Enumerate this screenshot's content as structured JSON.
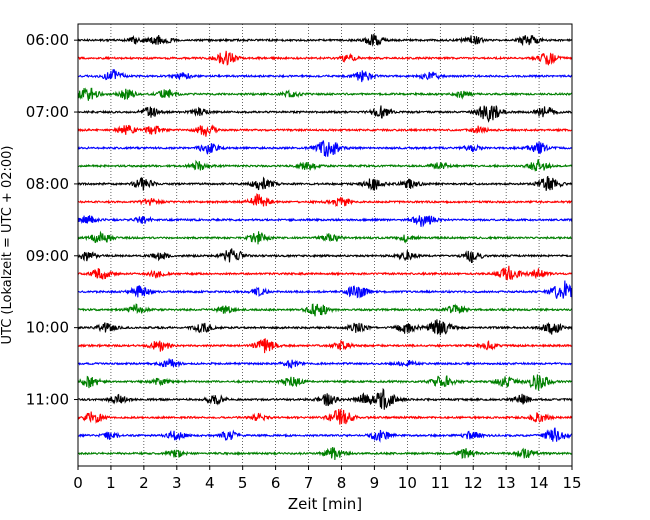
{
  "chart_data": {
    "type": "line",
    "title": "",
    "xlabel": "Zeit  [min]",
    "ylabel": "UTC (Lokalzeit = UTC + 02:00)",
    "xlim": [
      0,
      15
    ],
    "x_ticks": [
      0,
      1,
      2,
      3,
      4,
      5,
      6,
      7,
      8,
      9,
      10,
      11,
      12,
      13,
      14,
      15
    ],
    "x_tick_labels": [
      "0",
      "1",
      "2",
      "3",
      "4",
      "5",
      "6",
      "7",
      "8",
      "9",
      "10",
      "11",
      "12",
      "13",
      "14",
      "15"
    ],
    "vertical_grid": true,
    "grid_style": "dotted",
    "y_tick_labels": [
      "06:00",
      "07:00",
      "08:00",
      "09:00",
      "10:00",
      "11:00"
    ],
    "trace_colors": [
      "#000000",
      "#ff0000",
      "#0000ff",
      "#008000"
    ],
    "traces": [
      {
        "start": "06:00",
        "color": "#000000",
        "events": [
          [
            2.5,
            5
          ],
          [
            9.0,
            5
          ],
          [
            12.0,
            4
          ],
          [
            13.7,
            5
          ],
          [
            1.8,
            3
          ]
        ]
      },
      {
        "start": "06:15",
        "color": "#ff0000",
        "events": [
          [
            4.5,
            6
          ],
          [
            14.3,
            5
          ],
          [
            8.2,
            3
          ]
        ]
      },
      {
        "start": "06:30",
        "color": "#0000ff",
        "events": [
          [
            1.1,
            5
          ],
          [
            8.7,
            5
          ],
          [
            10.7,
            4
          ],
          [
            3.2,
            3
          ]
        ]
      },
      {
        "start": "06:45",
        "color": "#008000",
        "events": [
          [
            0.3,
            6
          ],
          [
            1.5,
            4
          ],
          [
            2.7,
            4
          ],
          [
            6.5,
            3
          ],
          [
            11.7,
            3
          ]
        ]
      },
      {
        "start": "07:00",
        "color": "#000000",
        "events": [
          [
            2.2,
            5
          ],
          [
            9.2,
            5
          ],
          [
            12.5,
            8
          ],
          [
            14.2,
            5
          ],
          [
            3.7,
            3
          ]
        ]
      },
      {
        "start": "07:15",
        "color": "#ff0000",
        "events": [
          [
            1.5,
            4
          ],
          [
            2.3,
            4
          ],
          [
            3.9,
            5
          ],
          [
            12.2,
            3
          ]
        ]
      },
      {
        "start": "07:30",
        "color": "#0000ff",
        "events": [
          [
            4.0,
            5
          ],
          [
            7.6,
            8
          ],
          [
            14.0,
            5
          ],
          [
            12.0,
            3
          ]
        ]
      },
      {
        "start": "07:45",
        "color": "#008000",
        "events": [
          [
            3.7,
            4
          ],
          [
            7.0,
            4
          ],
          [
            14.0,
            5
          ],
          [
            11.0,
            3
          ]
        ]
      },
      {
        "start": "08:00",
        "color": "#000000",
        "events": [
          [
            2.0,
            5
          ],
          [
            5.6,
            6
          ],
          [
            9.0,
            5
          ],
          [
            10.1,
            4
          ],
          [
            14.3,
            6
          ]
        ]
      },
      {
        "start": "08:15",
        "color": "#ff0000",
        "events": [
          [
            5.5,
            6
          ],
          [
            8.0,
            5
          ],
          [
            2.2,
            3
          ]
        ]
      },
      {
        "start": "08:30",
        "color": "#0000ff",
        "events": [
          [
            0.3,
            4
          ],
          [
            10.5,
            6
          ],
          [
            2.0,
            3
          ]
        ]
      },
      {
        "start": "08:45",
        "color": "#008000",
        "events": [
          [
            0.7,
            5
          ],
          [
            5.5,
            5
          ],
          [
            7.7,
            4
          ],
          [
            10.0,
            3
          ]
        ]
      },
      {
        "start": "09:00",
        "color": "#000000",
        "events": [
          [
            0.3,
            4
          ],
          [
            4.7,
            6
          ],
          [
            10.0,
            4
          ],
          [
            12.0,
            5
          ],
          [
            2.5,
            3
          ]
        ]
      },
      {
        "start": "09:15",
        "color": "#ff0000",
        "events": [
          [
            0.7,
            5
          ],
          [
            13.1,
            6
          ],
          [
            14.0,
            4
          ],
          [
            2.4,
            3
          ]
        ]
      },
      {
        "start": "09:30",
        "color": "#0000ff",
        "events": [
          [
            1.9,
            5
          ],
          [
            8.5,
            6
          ],
          [
            14.8,
            9
          ],
          [
            5.5,
            3
          ]
        ]
      },
      {
        "start": "09:45",
        "color": "#008000",
        "events": [
          [
            1.8,
            4
          ],
          [
            7.3,
            6
          ],
          [
            11.5,
            4
          ],
          [
            4.5,
            3
          ]
        ]
      },
      {
        "start": "10:00",
        "color": "#000000",
        "events": [
          [
            0.9,
            4
          ],
          [
            3.8,
            4
          ],
          [
            8.5,
            4
          ],
          [
            10.0,
            5
          ],
          [
            11.0,
            7
          ],
          [
            14.4,
            5
          ]
        ]
      },
      {
        "start": "10:15",
        "color": "#ff0000",
        "events": [
          [
            2.5,
            5
          ],
          [
            5.7,
            6
          ],
          [
            8.0,
            4
          ],
          [
            12.5,
            3
          ]
        ]
      },
      {
        "start": "10:30",
        "color": "#0000ff",
        "events": [
          [
            2.8,
            4
          ],
          [
            10.0,
            3
          ],
          [
            6.5,
            3
          ]
        ]
      },
      {
        "start": "10:45",
        "color": "#008000",
        "events": [
          [
            0.4,
            5
          ],
          [
            6.5,
            5
          ],
          [
            11.1,
            6
          ],
          [
            14.0,
            7
          ],
          [
            13.0,
            5
          ],
          [
            2.5,
            3
          ]
        ]
      },
      {
        "start": "11:00",
        "color": "#000000",
        "events": [
          [
            1.2,
            4
          ],
          [
            4.2,
            4
          ],
          [
            7.6,
            5
          ],
          [
            9.3,
            8
          ],
          [
            8.7,
            4
          ],
          [
            13.5,
            4
          ]
        ]
      },
      {
        "start": "11:15",
        "color": "#ff0000",
        "events": [
          [
            0.5,
            5
          ],
          [
            8.0,
            7
          ],
          [
            14.0,
            4
          ],
          [
            5.5,
            3
          ]
        ]
      },
      {
        "start": "11:30",
        "color": "#0000ff",
        "events": [
          [
            3.0,
            4
          ],
          [
            4.6,
            4
          ],
          [
            9.2,
            5
          ],
          [
            12.0,
            4
          ],
          [
            14.5,
            6
          ],
          [
            1.0,
            3
          ]
        ]
      },
      {
        "start": "11:45",
        "color": "#008000",
        "events": [
          [
            7.8,
            5
          ],
          [
            11.8,
            4
          ],
          [
            13.6,
            4
          ],
          [
            3.0,
            3
          ]
        ]
      }
    ]
  }
}
